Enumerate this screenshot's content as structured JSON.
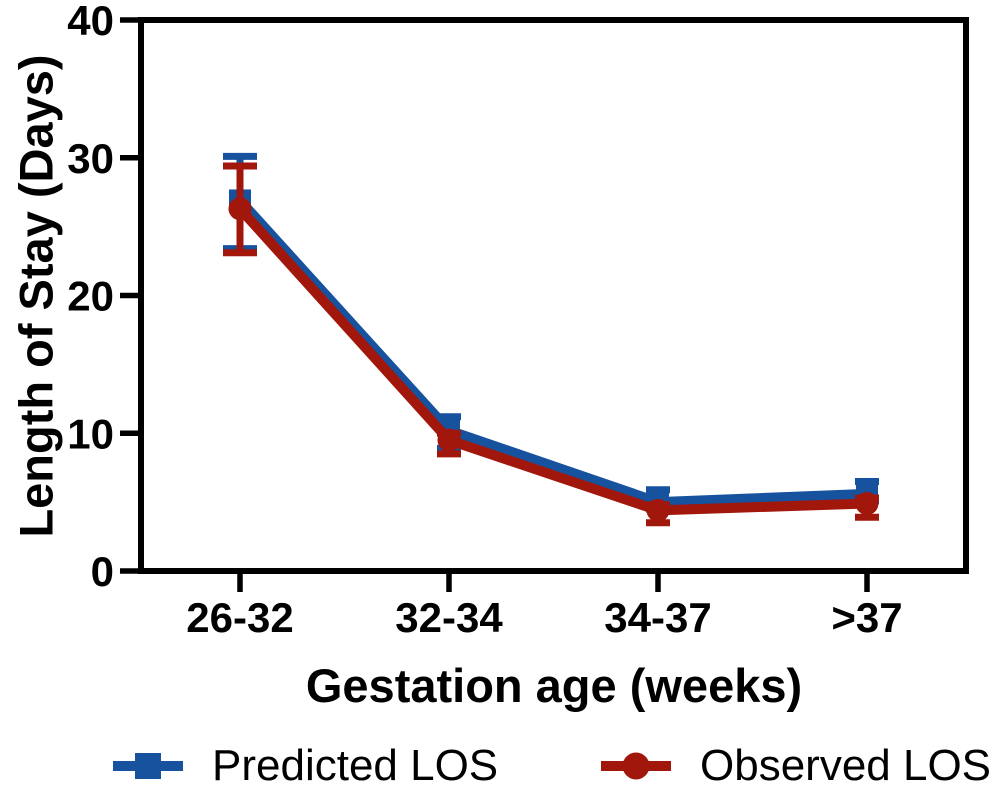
{
  "chart_data": {
    "type": "line",
    "title": "",
    "xlabel": "Gestation age (weeks)",
    "ylabel": "Length of Stay (Days)",
    "categories": [
      "26-32",
      "32-34",
      "34-37",
      ">37"
    ],
    "ylim": [
      0,
      40
    ],
    "yticks": [
      0,
      10,
      20,
      30,
      40
    ],
    "grid": false,
    "legend_position": "bottom",
    "axis_color": "#000000",
    "series": [
      {
        "name": "Predicted LOS",
        "color": "#17529E",
        "marker": "square",
        "values": [
          26.9,
          10.2,
          5.0,
          5.6
        ],
        "err_hi": [
          3.2,
          1.0,
          0.9,
          0.9
        ],
        "err_lo": [
          3.5,
          1.3,
          0.5,
          0.5
        ]
      },
      {
        "name": "Observed LOS",
        "color": "#A1170C",
        "marker": "circle",
        "values": [
          26.3,
          9.5,
          4.4,
          4.9
        ],
        "err_hi": [
          3.1,
          0.5,
          0.4,
          0.4
        ],
        "err_lo": [
          3.2,
          1.0,
          0.9,
          1.0
        ]
      }
    ]
  }
}
